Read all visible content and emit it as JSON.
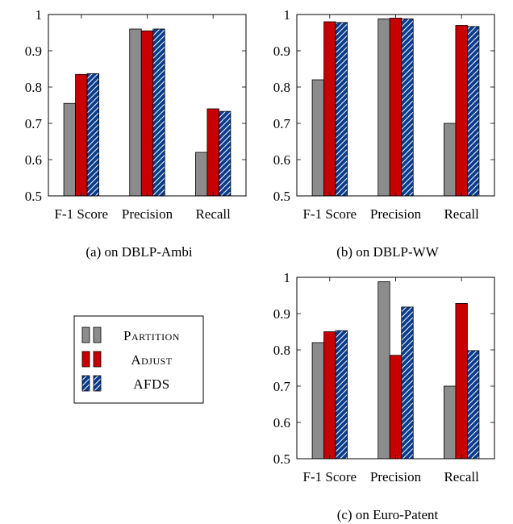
{
  "colors": {
    "partition_fill": "#8c8c8c",
    "adjust_fill": "#c80000",
    "afds_fill": "#0a3d8c",
    "afds_hatch": "#ffffff",
    "axis": "#000000"
  },
  "legend": {
    "items": [
      {
        "key": "partition",
        "label": "Partition",
        "style": "small-caps"
      },
      {
        "key": "adjust",
        "label": "Adjust",
        "style": "small-caps"
      },
      {
        "key": "afds",
        "label": "AFDS",
        "style": "small-caps"
      }
    ]
  },
  "chart_data": [
    {
      "type": "bar",
      "caption": "(a) on DBLP-Ambi",
      "categories": [
        "F-1 Score",
        "Precision",
        "Recall"
      ],
      "ylim": [
        0.5,
        1
      ],
      "yticks": [
        0.5,
        0.6,
        0.7,
        0.8,
        0.9,
        1
      ],
      "ytick_labels": [
        "0.5",
        "0.6",
        "0.7",
        "0.8",
        "0.9",
        "1"
      ],
      "grid": false,
      "series": [
        {
          "key": "partition",
          "values": [
            0.755,
            0.96,
            0.62
          ]
        },
        {
          "key": "adjust",
          "values": [
            0.835,
            0.955,
            0.74
          ]
        },
        {
          "key": "afds",
          "values": [
            0.837,
            0.96,
            0.733
          ]
        }
      ]
    },
    {
      "type": "bar",
      "caption": "(b) on DBLP-WW",
      "categories": [
        "F-1 Score",
        "Precision",
        "Recall"
      ],
      "ylim": [
        0.5,
        1
      ],
      "yticks": [
        0.5,
        0.6,
        0.7,
        0.8,
        0.9,
        1
      ],
      "ytick_labels": [
        "0.5",
        "0.6",
        "0.7",
        "0.8",
        "0.9",
        "1"
      ],
      "grid": false,
      "series": [
        {
          "key": "partition",
          "values": [
            0.82,
            0.988,
            0.7
          ]
        },
        {
          "key": "adjust",
          "values": [
            0.98,
            0.99,
            0.97
          ]
        },
        {
          "key": "afds",
          "values": [
            0.978,
            0.988,
            0.967
          ]
        }
      ]
    },
    {
      "type": "bar",
      "caption": "(c) on Euro-Patent",
      "categories": [
        "F-1 Score",
        "Precision",
        "Recall"
      ],
      "ylim": [
        0.5,
        1
      ],
      "yticks": [
        0.5,
        0.6,
        0.7,
        0.8,
        0.9,
        1
      ],
      "ytick_labels": [
        "0.5",
        "0.6",
        "0.7",
        "0.8",
        "0.9",
        "1"
      ],
      "grid": false,
      "series": [
        {
          "key": "partition",
          "values": [
            0.82,
            0.988,
            0.7
          ]
        },
        {
          "key": "adjust",
          "values": [
            0.85,
            0.785,
            0.928
          ]
        },
        {
          "key": "afds",
          "values": [
            0.853,
            0.918,
            0.798
          ]
        }
      ]
    }
  ]
}
